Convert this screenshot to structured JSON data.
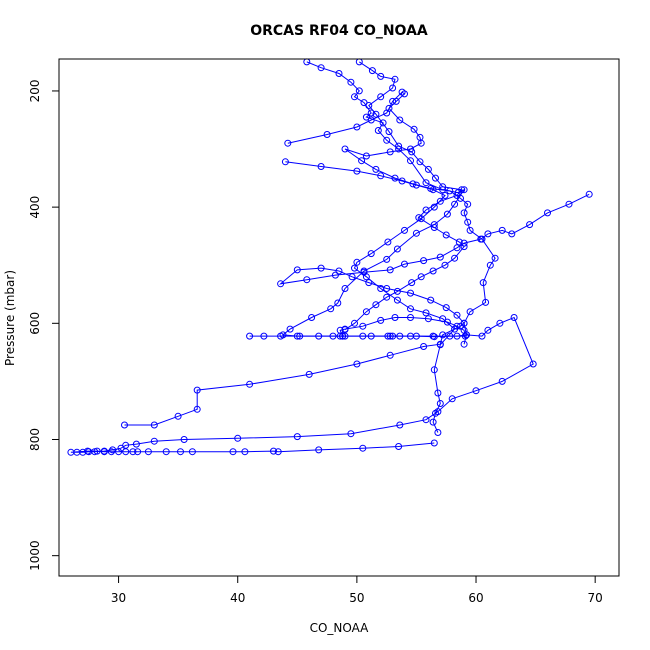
{
  "chart_data": {
    "type": "line",
    "title": "ORCAS RF04 CO_NOAA",
    "xlabel": "CO_NOAA",
    "ylabel": "Pressure (mbar)",
    "xlim": [
      25,
      72
    ],
    "ylim": [
      1035,
      145
    ],
    "y_inverted": true,
    "grid": false,
    "legend": "none",
    "x_ticks": [
      30,
      40,
      50,
      60,
      70
    ],
    "y_ticks": [
      200,
      400,
      600,
      800,
      1000
    ],
    "color": "#0000ff",
    "series": [
      {
        "marker": "open-circle",
        "points": [
          [
            45.8,
            150
          ],
          [
            47.0,
            160
          ],
          [
            48.5,
            170
          ],
          [
            49.5,
            185
          ],
          [
            50.2,
            200
          ],
          [
            49.8,
            210
          ],
          [
            50.6,
            220
          ],
          [
            51.2,
            238
          ],
          [
            50.8,
            245
          ],
          [
            52.2,
            255
          ],
          [
            51.8,
            268
          ],
          [
            52.5,
            285
          ],
          [
            53.5,
            300
          ],
          [
            54.5,
            320
          ],
          [
            55.8,
            358
          ],
          [
            57.2,
            370
          ],
          [
            58.5,
            375
          ],
          [
            59.0,
            370
          ],
          [
            58.2,
            395
          ],
          [
            57.6,
            412
          ],
          [
            56.5,
            430
          ],
          [
            55.0,
            445
          ],
          [
            53.4,
            472
          ],
          [
            52.5,
            490
          ],
          [
            50.6,
            510
          ],
          [
            49.0,
            540
          ],
          [
            48.4,
            565
          ],
          [
            47.8,
            575
          ],
          [
            46.2,
            590
          ],
          [
            44.4,
            610
          ],
          [
            43.8,
            620
          ],
          [
            45.0,
            622
          ],
          [
            46.8,
            622
          ],
          [
            48.6,
            622
          ],
          [
            50.5,
            622
          ],
          [
            52.6,
            622
          ],
          [
            54.5,
            622
          ],
          [
            56.4,
            622
          ],
          [
            58.4,
            622
          ],
          [
            59.2,
            620
          ],
          [
            60.5,
            622
          ],
          [
            61.0,
            612
          ],
          [
            62.0,
            600
          ],
          [
            63.2,
            590
          ],
          [
            64.8,
            670
          ],
          [
            62.2,
            700
          ],
          [
            60.0,
            716
          ],
          [
            58.0,
            730
          ],
          [
            56.8,
            752
          ],
          [
            55.8,
            766
          ],
          [
            53.6,
            775
          ],
          [
            49.5,
            790
          ],
          [
            45.0,
            795
          ],
          [
            40.0,
            798
          ],
          [
            35.5,
            800
          ],
          [
            33.0,
            803
          ],
          [
            31.5,
            808
          ],
          [
            30.6,
            810
          ],
          [
            30.2,
            815
          ],
          [
            29.5,
            818
          ],
          [
            28.8,
            820
          ],
          [
            28.0,
            821
          ],
          [
            27.5,
            821
          ],
          [
            27.0,
            822
          ],
          [
            26.5,
            822
          ],
          [
            26.0,
            822
          ],
          [
            27.4,
            820
          ],
          [
            28.2,
            820
          ],
          [
            28.8,
            821
          ],
          [
            29.4,
            821
          ],
          [
            30.0,
            821
          ],
          [
            30.6,
            821
          ],
          [
            31.2,
            821
          ],
          [
            31.6,
            821
          ],
          [
            32.5,
            821
          ],
          [
            34.0,
            821
          ],
          [
            35.2,
            821
          ],
          [
            36.2,
            821
          ],
          [
            39.6,
            821
          ],
          [
            40.6,
            821
          ],
          [
            43.0,
            820
          ],
          [
            43.4,
            821
          ],
          [
            46.8,
            818
          ],
          [
            50.5,
            815
          ],
          [
            53.5,
            812
          ],
          [
            56.5,
            806
          ]
        ]
      },
      {
        "marker": "open-circle",
        "points": [
          [
            41.0,
            622
          ],
          [
            42.2,
            622
          ],
          [
            43.6,
            622
          ],
          [
            45.2,
            622
          ],
          [
            48.0,
            622
          ],
          [
            48.8,
            622
          ],
          [
            49.0,
            622
          ],
          [
            51.2,
            622
          ],
          [
            52.8,
            622
          ],
          [
            53.0,
            622
          ],
          [
            53.6,
            622
          ],
          [
            55.0,
            622
          ],
          [
            56.5,
            623
          ],
          [
            57.8,
            622
          ],
          [
            59.1,
            622
          ],
          [
            59.0,
            612
          ],
          [
            58.4,
            605
          ],
          [
            57.6,
            598
          ],
          [
            56.0,
            592
          ],
          [
            54.5,
            590
          ],
          [
            53.2,
            590
          ],
          [
            52.0,
            595
          ],
          [
            50.5,
            605
          ],
          [
            49.0,
            610
          ],
          [
            48.6,
            612
          ],
          [
            48.8,
            622
          ]
        ]
      },
      {
        "marker": "open-circle",
        "points": [
          [
            30.5,
            775
          ],
          [
            33.0,
            775
          ],
          [
            35.0,
            760
          ],
          [
            36.6,
            748
          ],
          [
            36.6,
            715
          ],
          [
            41.0,
            705
          ],
          [
            46.0,
            688
          ],
          [
            50.0,
            670
          ],
          [
            52.8,
            655
          ],
          [
            55.6,
            640
          ],
          [
            57.0,
            636
          ],
          [
            57.2,
            620
          ],
          [
            58.7,
            605
          ],
          [
            59.0,
            600
          ],
          [
            58.4,
            586
          ],
          [
            57.5,
            573
          ],
          [
            56.2,
            560
          ],
          [
            54.5,
            548
          ],
          [
            52.5,
            540
          ],
          [
            51.0,
            530
          ],
          [
            49.6,
            520
          ],
          [
            48.5,
            510
          ],
          [
            47.0,
            505
          ],
          [
            45.0,
            508
          ],
          [
            43.6,
            532
          ],
          [
            45.8,
            525
          ],
          [
            48.2,
            517
          ],
          [
            50.6,
            512
          ],
          [
            52.8,
            508
          ],
          [
            54.0,
            498
          ],
          [
            55.6,
            492
          ],
          [
            57.0,
            486
          ],
          [
            58.4,
            470
          ],
          [
            59.0,
            462
          ],
          [
            60.4,
            455
          ],
          [
            61.0,
            446
          ],
          [
            62.2,
            440
          ],
          [
            63.0,
            446
          ],
          [
            64.5,
            430
          ],
          [
            66.0,
            410
          ],
          [
            67.8,
            395
          ],
          [
            69.5,
            378
          ]
        ]
      },
      {
        "marker": "open-circle",
        "points": [
          [
            44.2,
            290
          ],
          [
            47.5,
            275
          ],
          [
            50.0,
            262
          ],
          [
            51.2,
            250
          ],
          [
            52.5,
            238
          ],
          [
            53.0,
            218
          ],
          [
            53.8,
            202
          ],
          [
            54.0,
            205
          ],
          [
            53.3,
            218
          ],
          [
            52.7,
            230
          ],
          [
            53.6,
            250
          ],
          [
            54.8,
            266
          ],
          [
            55.3,
            280
          ],
          [
            55.4,
            290
          ],
          [
            54.5,
            300
          ],
          [
            52.8,
            305
          ],
          [
            50.8,
            312
          ],
          [
            49.0,
            300
          ],
          [
            50.4,
            320
          ],
          [
            51.6,
            335
          ],
          [
            53.2,
            350
          ],
          [
            54.7,
            360
          ],
          [
            56.2,
            368
          ],
          [
            57.8,
            372
          ],
          [
            58.7,
            385
          ],
          [
            59.3,
            395
          ],
          [
            59.0,
            410
          ],
          [
            59.3,
            426
          ],
          [
            59.5,
            440
          ],
          [
            60.5,
            455
          ],
          [
            61.6,
            488
          ],
          [
            61.2,
            500
          ],
          [
            60.6,
            530
          ],
          [
            60.8,
            564
          ],
          [
            59.5,
            580
          ],
          [
            59.0,
            600
          ],
          [
            59.2,
            620
          ],
          [
            59.0,
            636
          ]
        ]
      },
      {
        "marker": "open-circle",
        "points": [
          [
            44.0,
            322
          ],
          [
            47.0,
            330
          ],
          [
            50.0,
            338
          ],
          [
            52.0,
            346
          ],
          [
            53.8,
            355
          ],
          [
            55.0,
            362
          ],
          [
            56.4,
            370
          ],
          [
            57.4,
            380
          ],
          [
            56.5,
            400
          ],
          [
            55.4,
            420
          ],
          [
            54.0,
            440
          ],
          [
            52.6,
            460
          ],
          [
            51.2,
            480
          ],
          [
            50.0,
            495
          ],
          [
            49.8,
            505
          ],
          [
            50.8,
            520
          ],
          [
            52.0,
            540
          ],
          [
            53.4,
            560
          ],
          [
            54.5,
            575
          ],
          [
            55.8,
            582
          ],
          [
            57.2,
            592
          ],
          [
            58.2,
            610
          ],
          [
            57.0,
            637
          ],
          [
            56.5,
            680
          ],
          [
            56.8,
            720
          ],
          [
            57.0,
            738
          ],
          [
            56.6,
            755
          ],
          [
            56.4,
            770
          ],
          [
            56.8,
            788
          ]
        ]
      },
      {
        "marker": "open-circle",
        "points": [
          [
            50.2,
            150
          ],
          [
            51.3,
            165
          ],
          [
            52.0,
            175
          ],
          [
            53.2,
            180
          ],
          [
            53.0,
            195
          ],
          [
            52.0,
            210
          ],
          [
            51.0,
            225
          ],
          [
            51.6,
            240
          ],
          [
            52.7,
            270
          ],
          [
            53.5,
            295
          ],
          [
            54.6,
            305
          ],
          [
            55.3,
            322
          ],
          [
            56.0,
            335
          ],
          [
            56.6,
            350
          ],
          [
            57.2,
            365
          ],
          [
            58.8,
            370
          ],
          [
            58.4,
            380
          ],
          [
            57.0,
            390
          ],
          [
            55.8,
            405
          ],
          [
            55.2,
            418
          ],
          [
            56.5,
            435
          ],
          [
            57.5,
            448
          ],
          [
            58.6,
            460
          ],
          [
            59.0,
            468
          ],
          [
            58.2,
            488
          ],
          [
            57.4,
            500
          ],
          [
            56.4,
            510
          ],
          [
            55.4,
            520
          ],
          [
            54.6,
            530
          ],
          [
            53.4,
            545
          ],
          [
            52.5,
            555
          ],
          [
            51.6,
            568
          ],
          [
            50.8,
            580
          ],
          [
            49.8,
            600
          ],
          [
            49.0,
            611
          ]
        ]
      }
    ]
  }
}
